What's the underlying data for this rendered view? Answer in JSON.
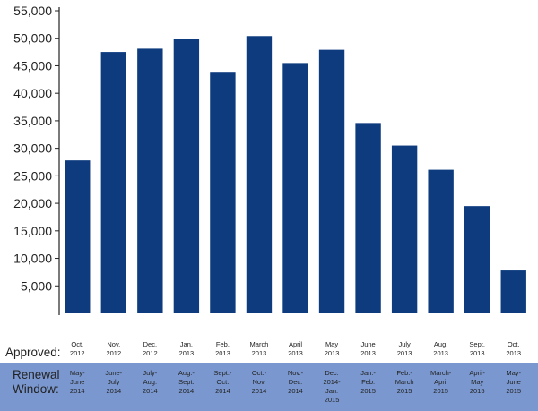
{
  "chart_data": {
    "type": "bar",
    "title": "",
    "xlabel": "",
    "ylabel": "",
    "ylim": [
      0,
      55000
    ],
    "yticks": [
      "5,000",
      "10,000",
      "15,000",
      "20,000",
      "25,000",
      "30,000",
      "35,000",
      "40,000",
      "45,000",
      "50,000",
      "55,000"
    ],
    "ytick_values": [
      5000,
      10000,
      15000,
      20000,
      25000,
      30000,
      35000,
      40000,
      45000,
      50000,
      55000
    ],
    "row_labels": {
      "approved": "Approved:",
      "renewal": [
        "Renewal",
        "Window:"
      ]
    },
    "categories": [
      [
        "Oct.",
        "2012"
      ],
      [
        "Nov.",
        "2012"
      ],
      [
        "Dec.",
        "2012"
      ],
      [
        "Jan.",
        "2013"
      ],
      [
        "Feb.",
        "2013"
      ],
      [
        "March",
        "2013"
      ],
      [
        "April",
        "2013"
      ],
      [
        "May",
        "2013"
      ],
      [
        "June",
        "2013"
      ],
      [
        "July",
        "2013"
      ],
      [
        "Aug.",
        "2013"
      ],
      [
        "Sept.",
        "2013"
      ],
      [
        "Oct.",
        "2013"
      ]
    ],
    "renewal_windows": [
      [
        "May-",
        "June",
        "2014"
      ],
      [
        "June-",
        "July",
        "2014"
      ],
      [
        "July-",
        "Aug.",
        "2014"
      ],
      [
        "Aug.-",
        "Sept.",
        "2014"
      ],
      [
        "Sept.-",
        "Oct.",
        "2014"
      ],
      [
        "Oct.-",
        "Nov.",
        "2014"
      ],
      [
        "Nov.-",
        "Dec.",
        "2014"
      ],
      [
        "Dec.",
        "2014-",
        "Jan.",
        "2015"
      ],
      [
        "Jan.-",
        "Feb.",
        "2015"
      ],
      [
        "Feb.-",
        "March",
        "2015"
      ],
      [
        "March-",
        "April",
        "2015"
      ],
      [
        "April-",
        "May",
        "2015"
      ],
      [
        "May-",
        "June",
        "2015"
      ]
    ],
    "values": [
      27800,
      47500,
      48100,
      49900,
      43900,
      50400,
      45500,
      47900,
      34600,
      30500,
      26100,
      19500,
      7800
    ],
    "colors": {
      "bar": "#0d3b7e",
      "renewal_band": "#7a98cf",
      "axis": "#222222"
    },
    "grid": false,
    "legend": "none"
  }
}
